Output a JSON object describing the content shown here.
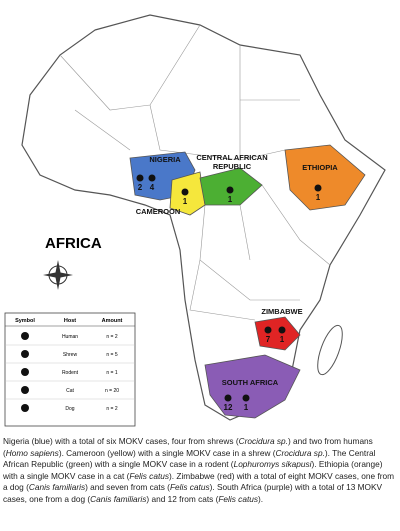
{
  "map": {
    "title": "AFRICA",
    "regions": [
      {
        "name_lines": [
          "NIGERIA"
        ],
        "color": "#4a78c9",
        "counts": [
          "2",
          "4"
        ]
      },
      {
        "name_lines": [
          "CAMEROON"
        ],
        "color": "#f5e73c",
        "counts": [
          "1"
        ]
      },
      {
        "name_lines": [
          "CENTRAL AFRICAN",
          "REPUBLIC"
        ],
        "color": "#4caf33",
        "counts": [
          "1"
        ]
      },
      {
        "name_lines": [
          "ETHIOPIA"
        ],
        "color": "#ee8a2a",
        "counts": [
          "1"
        ]
      },
      {
        "name_lines": [
          "ZIMBABWE"
        ],
        "color": "#e02424",
        "counts": [
          "7",
          "1"
        ]
      },
      {
        "name_lines": [
          "SOUTH AFRICA"
        ],
        "color": "#8a5cb5",
        "counts": [
          "12",
          "1"
        ]
      }
    ]
  },
  "legend": {
    "headers": [
      "Symbol",
      "Host",
      "Amount"
    ],
    "rows": [
      [
        "Human",
        "n = 2"
      ],
      [
        "Shrew",
        "n = 5"
      ],
      [
        "Rodent",
        "n = 1"
      ],
      [
        "Cat",
        "n = 20"
      ],
      [
        "Dog",
        "n = 2"
      ]
    ]
  },
  "caption": [
    {
      "text": "Nigeria (blue) with a total of six MOKV cases, four from shrews (",
      "italic": false
    },
    {
      "text": "Crocidura sp.",
      "italic": true
    },
    {
      "text": ") and two from humans (",
      "italic": false
    },
    {
      "text": "Homo sapiens",
      "italic": true
    },
    {
      "text": "). Cameroon (yellow) with a single MOKV case in a shrew (",
      "italic": false
    },
    {
      "text": "Crocidura sp.",
      "italic": true
    },
    {
      "text": "). The Central African Republic (green) with a single MOKV case in a rodent (",
      "italic": false
    },
    {
      "text": "Lophuromys sikapusi",
      "italic": true
    },
    {
      "text": "). Ethiopia (orange) with a single MOKV case in a cat (",
      "italic": false
    },
    {
      "text": "Felis catus",
      "italic": true
    },
    {
      "text": "). Zimbabwe (red) with a total of eight MOKV cases, one from a dog (",
      "italic": false
    },
    {
      "text": "Canis familiaris",
      "italic": true
    },
    {
      "text": ") and seven from cats (",
      "italic": false
    },
    {
      "text": "Felis catus",
      "italic": true
    },
    {
      "text": "). South Africa (purple) with a total of 13 MOKV cases, one from a dog (",
      "italic": false
    },
    {
      "text": "Canis familiaris",
      "italic": true
    },
    {
      "text": ") and 12 from cats (",
      "italic": false
    },
    {
      "text": "Felis catus",
      "italic": true
    },
    {
      "text": ").",
      "italic": false
    }
  ]
}
